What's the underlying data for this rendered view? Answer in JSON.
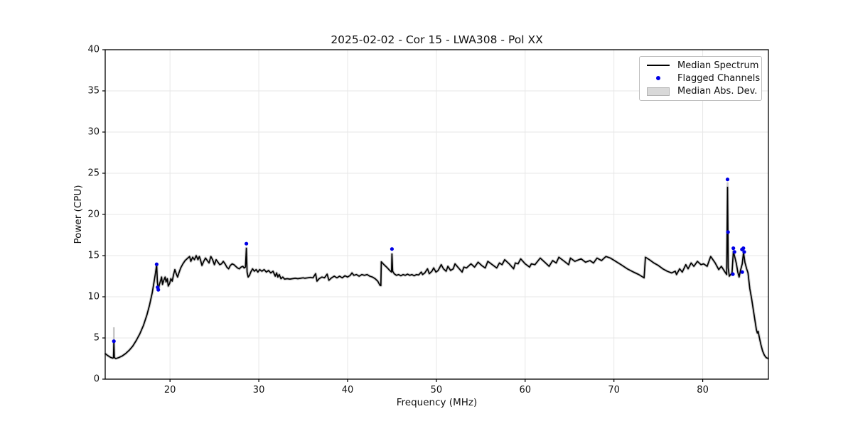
{
  "chart_data": {
    "type": "line",
    "title": "2025-02-02 - Cor 15 - LWA308 - Pol XX",
    "xlabel": "Frequency (MHz)",
    "ylabel": "Power (CPU)",
    "xlim": [
      12.7,
      87.4
    ],
    "ylim": [
      0,
      40
    ],
    "xticks": [
      20,
      30,
      40,
      50,
      60,
      70,
      80
    ],
    "yticks": [
      0,
      5,
      10,
      15,
      20,
      25,
      30,
      35,
      40
    ],
    "grid": true,
    "colors": {
      "median_line": "#000000",
      "flagged": "#0000e6",
      "mad_band": "#c8c8c8",
      "gridline": "#e7e7e7",
      "frame": "#000000"
    },
    "legend": {
      "position": "upper right",
      "entries": [
        {
          "label": "Median Spectrum",
          "marker": "line"
        },
        {
          "label": "Flagged Channels",
          "marker": "dot"
        },
        {
          "label": "Median Abs. Dev.",
          "marker": "patch"
        }
      ]
    },
    "series": [
      {
        "name": "Median Spectrum",
        "kind": "line",
        "points": [
          [
            12.7,
            3.1
          ],
          [
            13.0,
            2.85
          ],
          [
            13.3,
            2.65
          ],
          [
            13.55,
            2.55
          ],
          [
            13.63,
            2.6
          ],
          [
            13.68,
            4.5
          ],
          [
            13.73,
            2.6
          ],
          [
            13.9,
            2.5
          ],
          [
            14.2,
            2.6
          ],
          [
            14.6,
            2.8
          ],
          [
            15.0,
            3.1
          ],
          [
            15.4,
            3.5
          ],
          [
            15.8,
            4.0
          ],
          [
            16.2,
            4.7
          ],
          [
            16.6,
            5.5
          ],
          [
            17.0,
            6.5
          ],
          [
            17.4,
            7.8
          ],
          [
            17.7,
            9.0
          ],
          [
            18.0,
            10.5
          ],
          [
            18.2,
            11.8
          ],
          [
            18.35,
            12.8
          ],
          [
            18.5,
            13.9
          ],
          [
            18.58,
            11.8
          ],
          [
            18.68,
            10.85
          ],
          [
            18.8,
            11.5
          ],
          [
            18.95,
            12.0
          ],
          [
            19.05,
            12.4
          ],
          [
            19.15,
            11.5
          ],
          [
            19.3,
            12.0
          ],
          [
            19.45,
            12.4
          ],
          [
            19.55,
            11.8
          ],
          [
            19.7,
            12.2
          ],
          [
            19.8,
            11.3
          ],
          [
            19.95,
            11.6
          ],
          [
            20.1,
            12.2
          ],
          [
            20.25,
            11.9
          ],
          [
            20.4,
            12.7
          ],
          [
            20.55,
            13.3
          ],
          [
            20.7,
            12.8
          ],
          [
            20.85,
            12.4
          ],
          [
            21.0,
            12.9
          ],
          [
            21.2,
            13.5
          ],
          [
            21.45,
            14.0
          ],
          [
            21.7,
            14.4
          ],
          [
            22.0,
            14.7
          ],
          [
            22.2,
            14.9
          ],
          [
            22.35,
            14.3
          ],
          [
            22.55,
            14.8
          ],
          [
            22.75,
            14.5
          ],
          [
            22.95,
            15.0
          ],
          [
            23.15,
            14.5
          ],
          [
            23.3,
            14.9
          ],
          [
            23.45,
            14.4
          ],
          [
            23.6,
            13.8
          ],
          [
            23.8,
            14.3
          ],
          [
            24.0,
            14.7
          ],
          [
            24.2,
            14.4
          ],
          [
            24.4,
            14.1
          ],
          [
            24.6,
            14.9
          ],
          [
            24.8,
            14.5
          ],
          [
            25.0,
            13.9
          ],
          [
            25.2,
            14.5
          ],
          [
            25.4,
            14.2
          ],
          [
            25.6,
            13.9
          ],
          [
            25.8,
            14.0
          ],
          [
            26.0,
            14.3
          ],
          [
            26.2,
            14.0
          ],
          [
            26.4,
            13.6
          ],
          [
            26.6,
            13.4
          ],
          [
            26.8,
            13.8
          ],
          [
            27.0,
            14.0
          ],
          [
            27.2,
            13.9
          ],
          [
            27.4,
            13.7
          ],
          [
            27.6,
            13.5
          ],
          [
            27.8,
            13.4
          ],
          [
            28.0,
            13.6
          ],
          [
            28.2,
            13.7
          ],
          [
            28.35,
            13.5
          ],
          [
            28.5,
            13.6
          ],
          [
            28.6,
            15.9
          ],
          [
            28.68,
            13.0
          ],
          [
            28.8,
            12.4
          ],
          [
            28.95,
            12.6
          ],
          [
            29.1,
            13.0
          ],
          [
            29.3,
            13.4
          ],
          [
            29.5,
            13.1
          ],
          [
            29.7,
            13.3
          ],
          [
            29.9,
            13.0
          ],
          [
            30.1,
            13.3
          ],
          [
            30.35,
            13.1
          ],
          [
            30.6,
            13.3
          ],
          [
            30.85,
            13.0
          ],
          [
            31.1,
            13.2
          ],
          [
            31.35,
            12.9
          ],
          [
            31.6,
            13.1
          ],
          [
            31.85,
            12.5
          ],
          [
            32.0,
            12.9
          ],
          [
            32.15,
            12.4
          ],
          [
            32.3,
            12.7
          ],
          [
            32.5,
            12.2
          ],
          [
            32.7,
            12.4
          ],
          [
            32.9,
            12.15
          ],
          [
            33.2,
            12.2
          ],
          [
            33.5,
            12.15
          ],
          [
            33.8,
            12.2
          ],
          [
            34.1,
            12.25
          ],
          [
            34.4,
            12.2
          ],
          [
            34.7,
            12.25
          ],
          [
            35.0,
            12.3
          ],
          [
            35.2,
            12.25
          ],
          [
            35.5,
            12.3
          ],
          [
            35.8,
            12.35
          ],
          [
            36.1,
            12.3
          ],
          [
            36.4,
            12.8
          ],
          [
            36.55,
            11.9
          ],
          [
            36.8,
            12.2
          ],
          [
            37.1,
            12.4
          ],
          [
            37.4,
            12.3
          ],
          [
            37.7,
            12.75
          ],
          [
            37.9,
            12.0
          ],
          [
            38.2,
            12.3
          ],
          [
            38.5,
            12.5
          ],
          [
            38.8,
            12.3
          ],
          [
            39.1,
            12.5
          ],
          [
            39.4,
            12.3
          ],
          [
            39.7,
            12.55
          ],
          [
            40.0,
            12.4
          ],
          [
            40.3,
            12.6
          ],
          [
            40.5,
            12.9
          ],
          [
            40.7,
            12.6
          ],
          [
            41.0,
            12.7
          ],
          [
            41.3,
            12.5
          ],
          [
            41.6,
            12.7
          ],
          [
            41.9,
            12.6
          ],
          [
            42.2,
            12.7
          ],
          [
            42.5,
            12.5
          ],
          [
            42.8,
            12.4
          ],
          [
            43.1,
            12.2
          ],
          [
            43.4,
            11.9
          ],
          [
            43.65,
            11.4
          ],
          [
            43.75,
            11.35
          ],
          [
            43.8,
            14.25
          ],
          [
            44.1,
            13.9
          ],
          [
            44.4,
            13.6
          ],
          [
            44.7,
            13.25
          ],
          [
            44.95,
            13.0
          ],
          [
            45.0,
            15.2
          ],
          [
            45.08,
            13.1
          ],
          [
            45.25,
            12.8
          ],
          [
            45.5,
            12.6
          ],
          [
            45.75,
            12.7
          ],
          [
            46.0,
            12.55
          ],
          [
            46.25,
            12.7
          ],
          [
            46.5,
            12.6
          ],
          [
            46.75,
            12.75
          ],
          [
            47.0,
            12.6
          ],
          [
            47.25,
            12.7
          ],
          [
            47.5,
            12.55
          ],
          [
            47.75,
            12.7
          ],
          [
            48.0,
            12.65
          ],
          [
            48.3,
            13.0
          ],
          [
            48.45,
            12.7
          ],
          [
            48.7,
            12.9
          ],
          [
            49.0,
            13.4
          ],
          [
            49.2,
            12.8
          ],
          [
            49.5,
            13.1
          ],
          [
            49.7,
            13.5
          ],
          [
            49.95,
            13.0
          ],
          [
            50.2,
            13.2
          ],
          [
            50.55,
            13.9
          ],
          [
            50.8,
            13.4
          ],
          [
            51.1,
            13.1
          ],
          [
            51.3,
            13.7
          ],
          [
            51.6,
            13.2
          ],
          [
            51.9,
            13.4
          ],
          [
            52.1,
            14.0
          ],
          [
            52.5,
            13.5
          ],
          [
            52.9,
            13.0
          ],
          [
            53.1,
            13.6
          ],
          [
            53.4,
            13.5
          ],
          [
            53.9,
            14.0
          ],
          [
            54.3,
            13.6
          ],
          [
            54.7,
            14.2
          ],
          [
            55.1,
            13.8
          ],
          [
            55.5,
            13.5
          ],
          [
            55.8,
            14.3
          ],
          [
            56.3,
            13.9
          ],
          [
            56.8,
            13.5
          ],
          [
            57.1,
            14.1
          ],
          [
            57.4,
            13.9
          ],
          [
            57.7,
            14.5
          ],
          [
            58.2,
            14.0
          ],
          [
            58.7,
            13.4
          ],
          [
            58.9,
            14.1
          ],
          [
            59.2,
            14.0
          ],
          [
            59.5,
            14.6
          ],
          [
            60.0,
            14.0
          ],
          [
            60.5,
            13.6
          ],
          [
            60.7,
            14.0
          ],
          [
            61.1,
            13.9
          ],
          [
            61.7,
            14.7
          ],
          [
            62.2,
            14.2
          ],
          [
            62.7,
            13.7
          ],
          [
            63.1,
            14.4
          ],
          [
            63.5,
            14.1
          ],
          [
            63.8,
            14.8
          ],
          [
            64.3,
            14.4
          ],
          [
            64.9,
            13.9
          ],
          [
            65.1,
            14.7
          ],
          [
            65.6,
            14.3
          ],
          [
            66.3,
            14.6
          ],
          [
            66.8,
            14.2
          ],
          [
            67.3,
            14.4
          ],
          [
            67.7,
            14.1
          ],
          [
            68.1,
            14.7
          ],
          [
            68.6,
            14.4
          ],
          [
            69.1,
            14.9
          ],
          [
            69.6,
            14.7
          ],
          [
            70.2,
            14.3
          ],
          [
            70.8,
            13.9
          ],
          [
            71.5,
            13.4
          ],
          [
            72.2,
            13.0
          ],
          [
            72.8,
            12.7
          ],
          [
            73.4,
            12.3
          ],
          [
            73.55,
            14.8
          ],
          [
            74.0,
            14.5
          ],
          [
            74.5,
            14.1
          ],
          [
            75.0,
            13.8
          ],
          [
            75.5,
            13.4
          ],
          [
            76.0,
            13.1
          ],
          [
            76.5,
            12.9
          ],
          [
            76.9,
            13.1
          ],
          [
            77.05,
            12.7
          ],
          [
            77.4,
            13.4
          ],
          [
            77.7,
            13.0
          ],
          [
            78.1,
            13.9
          ],
          [
            78.35,
            13.4
          ],
          [
            78.7,
            14.1
          ],
          [
            79.0,
            13.7
          ],
          [
            79.4,
            14.3
          ],
          [
            79.8,
            13.9
          ],
          [
            80.1,
            14.0
          ],
          [
            80.5,
            13.7
          ],
          [
            80.9,
            14.9
          ],
          [
            81.4,
            14.1
          ],
          [
            81.8,
            13.3
          ],
          [
            82.1,
            13.7
          ],
          [
            82.45,
            13.1
          ],
          [
            82.7,
            12.7
          ],
          [
            82.8,
            23.3
          ],
          [
            82.88,
            13.5
          ],
          [
            83.0,
            12.5
          ],
          [
            83.15,
            12.7
          ],
          [
            83.3,
            12.9
          ],
          [
            83.45,
            15.5
          ],
          [
            83.6,
            14.9
          ],
          [
            83.8,
            14.0
          ],
          [
            83.95,
            13.0
          ],
          [
            84.1,
            12.4
          ],
          [
            84.25,
            13.2
          ],
          [
            84.45,
            14.0
          ],
          [
            84.6,
            15.4
          ],
          [
            84.75,
            14.2
          ],
          [
            84.95,
            13.4
          ],
          [
            85.1,
            12.9
          ],
          [
            85.3,
            11.0
          ],
          [
            85.5,
            9.8
          ],
          [
            85.7,
            8.4
          ],
          [
            85.9,
            7.0
          ],
          [
            86.05,
            6.0
          ],
          [
            86.15,
            5.6
          ],
          [
            86.25,
            5.8
          ],
          [
            86.35,
            5.2
          ],
          [
            86.55,
            4.2
          ],
          [
            86.75,
            3.4
          ],
          [
            86.95,
            2.9
          ],
          [
            87.15,
            2.6
          ],
          [
            87.4,
            2.5
          ]
        ]
      },
      {
        "name": "Flagged Channels",
        "kind": "scatter",
        "points": [
          [
            13.68,
            4.6
          ],
          [
            18.5,
            13.95
          ],
          [
            18.6,
            11.15
          ],
          [
            18.68,
            10.85
          ],
          [
            28.6,
            16.45
          ],
          [
            45.0,
            15.8
          ],
          [
            82.8,
            24.25
          ],
          [
            82.85,
            17.85
          ],
          [
            83.4,
            12.75
          ],
          [
            83.45,
            15.9
          ],
          [
            83.58,
            15.45
          ],
          [
            84.42,
            15.75
          ],
          [
            84.45,
            13.0
          ],
          [
            84.58,
            15.9
          ],
          [
            84.68,
            15.45
          ]
        ]
      },
      {
        "name": "Median Abs. Dev.",
        "kind": "band",
        "halo_width": 4,
        "segments": [
          [
            13.68,
            2.6,
            6.3
          ],
          [
            82.8,
            22.8,
            23.9
          ]
        ]
      }
    ]
  }
}
